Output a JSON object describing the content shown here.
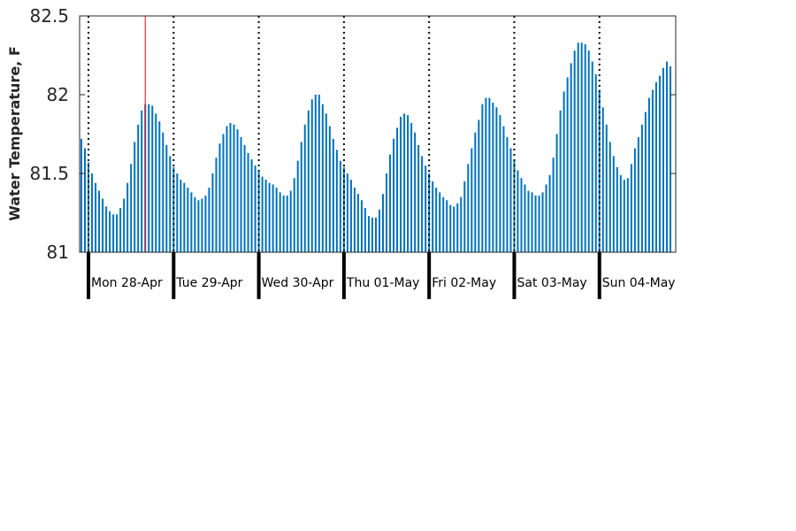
{
  "chart_data": {
    "type": "bar",
    "title": "",
    "xlabel": "",
    "ylabel": "Water Temperature, F",
    "ylim": [
      81,
      82.5
    ],
    "yticks": [
      81,
      81.5,
      82,
      82.5
    ],
    "ytick_labels": [
      "81",
      "81.5",
      "82",
      "82.5"
    ],
    "x_unit": "hour",
    "x_start": "Sun 27-Apr 21:00",
    "day_labels": [
      "Mon 28-Apr",
      "Tue 29-Apr",
      "Wed 30-Apr",
      "Thu 01-May",
      "Fri 02-May",
      "Sat 03-May",
      "Sun 04-May"
    ],
    "current_time_marker": "Mon 28-Apr 15:00",
    "grid": false,
    "colors": {
      "bars": "#0072bd",
      "marker": "#ff0000",
      "midnight_tick": "#000000",
      "noon_line": "#000000"
    },
    "values": [
      81.72,
      81.66,
      81.57,
      81.5,
      81.44,
      81.39,
      81.34,
      81.29,
      81.26,
      81.24,
      81.24,
      81.28,
      81.34,
      81.44,
      81.56,
      81.7,
      81.81,
      81.9,
      81.94,
      81.94,
      81.93,
      81.88,
      81.83,
      81.76,
      81.68,
      81.61,
      81.54,
      81.5,
      81.46,
      81.44,
      81.41,
      81.38,
      81.35,
      81.33,
      81.34,
      81.36,
      81.41,
      81.5,
      81.6,
      81.69,
      81.75,
      81.8,
      81.82,
      81.81,
      81.78,
      81.73,
      81.68,
      81.63,
      81.59,
      81.55,
      81.51,
      81.48,
      81.46,
      81.44,
      81.43,
      81.41,
      81.38,
      81.36,
      81.36,
      81.39,
      81.47,
      81.58,
      81.7,
      81.81,
      81.9,
      81.97,
      82.0,
      82.0,
      81.94,
      81.88,
      81.8,
      81.72,
      81.65,
      81.58,
      81.54,
      81.5,
      81.46,
      81.41,
      81.37,
      81.33,
      81.28,
      81.23,
      81.22,
      81.22,
      81.27,
      81.37,
      81.5,
      81.62,
      81.72,
      81.79,
      81.86,
      81.88,
      81.87,
      81.82,
      81.76,
      81.68,
      81.61,
      81.55,
      81.5,
      81.45,
      81.41,
      81.38,
      81.35,
      81.33,
      81.3,
      81.29,
      81.31,
      81.35,
      81.45,
      81.56,
      81.66,
      81.76,
      81.84,
      81.94,
      81.98,
      81.98,
      81.95,
      81.92,
      81.87,
      81.8,
      81.73,
      81.66,
      81.58,
      81.52,
      81.47,
      81.43,
      81.39,
      81.38,
      81.36,
      81.36,
      81.38,
      81.43,
      81.49,
      81.6,
      81.75,
      81.9,
      82.02,
      82.11,
      82.2,
      82.28,
      82.33,
      82.33,
      82.32,
      82.28,
      82.21,
      82.13,
      82.03,
      81.92,
      81.81,
      81.7,
      81.61,
      81.54,
      81.49,
      81.46,
      81.47,
      81.56,
      81.66,
      81.73,
      81.81,
      81.89,
      81.98,
      82.03,
      82.08,
      82.12,
      82.17,
      82.21,
      82.18
    ]
  }
}
